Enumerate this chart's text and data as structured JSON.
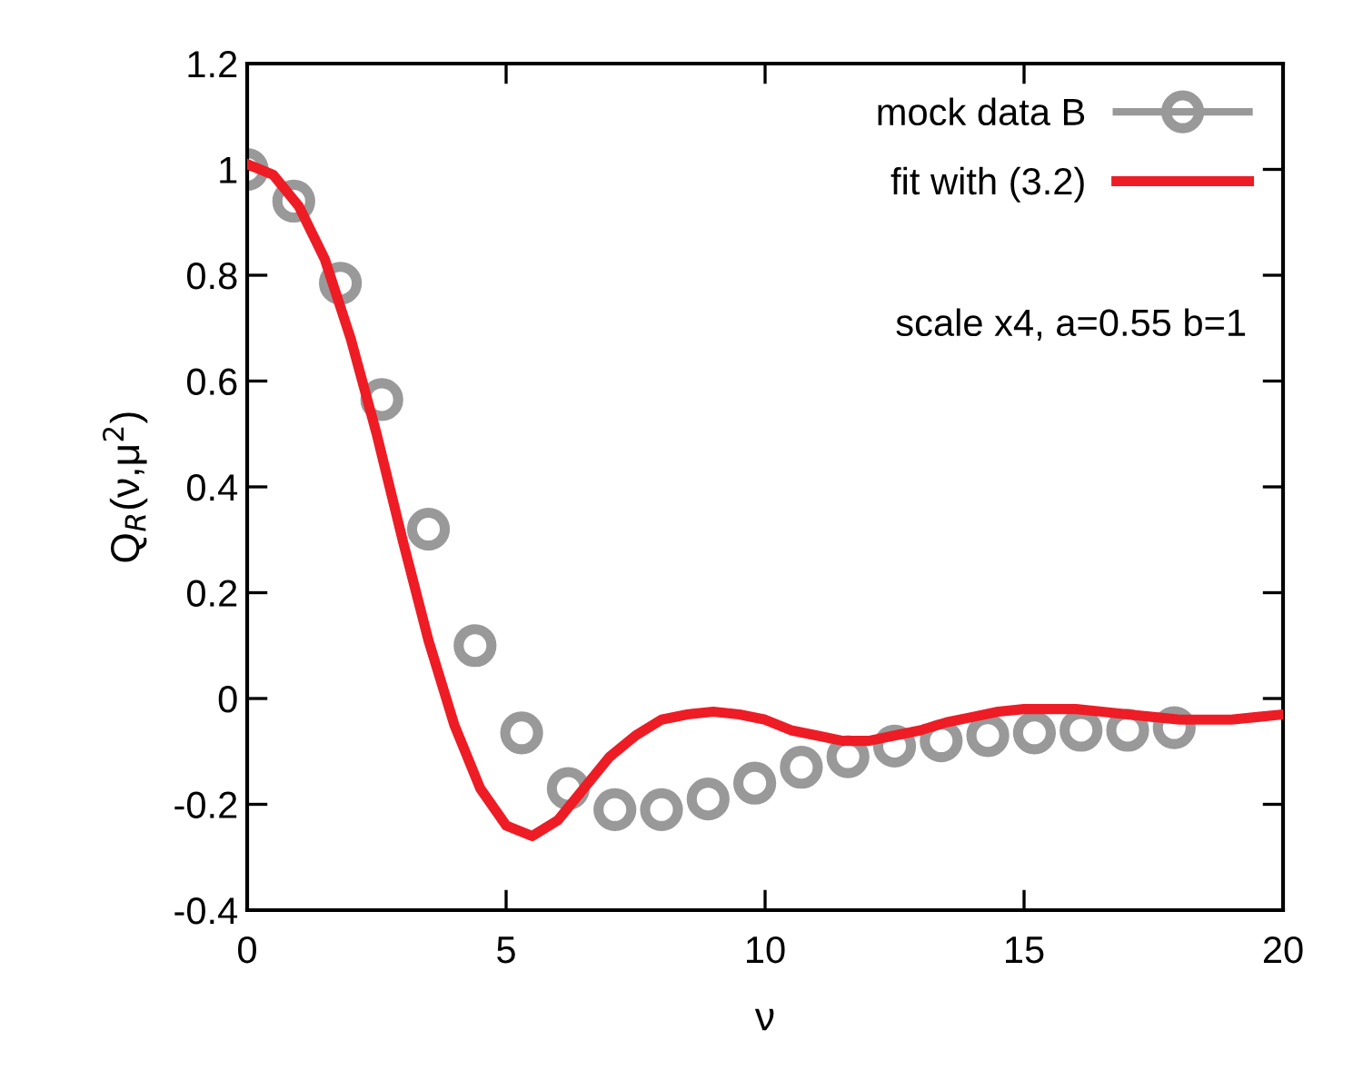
{
  "chart_data": {
    "type": "scatter",
    "xlabel": "ν",
    "ylabel": "Q$_{R}$(ν,μ$^{2}$)",
    "xlim": [
      0,
      20
    ],
    "ylim": [
      -0.4,
      1.2
    ],
    "xticks": [
      0,
      5,
      10,
      15,
      20
    ],
    "yticks": [
      -0.4,
      -0.2,
      0,
      0.2,
      0.4,
      0.6,
      0.8,
      1,
      1.2
    ],
    "grid": false,
    "legend": "top right",
    "annotations": [
      "scale x4, a=0.55 b=1"
    ],
    "series": [
      {
        "name": "mock data B",
        "marker": "circle",
        "color": "#999999",
        "x": [
          0,
          0.9,
          1.8,
          2.6,
          3.5,
          4.4,
          5.3,
          6.2,
          7.1,
          8.0,
          8.9,
          9.8,
          10.7,
          11.6,
          12.5,
          13.4,
          14.3,
          15.2,
          16.1,
          17.0,
          17.9
        ],
        "values": [
          1.0,
          0.94,
          0.785,
          0.565,
          0.32,
          0.1,
          -0.065,
          -0.17,
          -0.21,
          -0.21,
          -0.19,
          -0.16,
          -0.13,
          -0.11,
          -0.09,
          -0.08,
          -0.07,
          -0.065,
          -0.06,
          -0.06,
          -0.055
        ]
      },
      {
        "name": "fit with (3.2)",
        "type": "line",
        "marker": "none",
        "line_style": "solid",
        "color": "#ee1c25",
        "x": [
          0,
          0.5,
          1,
          1.5,
          2,
          2.5,
          3,
          3.5,
          4,
          4.5,
          5,
          5.5,
          6,
          6.5,
          7,
          7.5,
          8,
          8.5,
          9,
          9.5,
          10,
          10.5,
          11,
          11.5,
          12,
          12.5,
          13,
          13.5,
          14,
          14.5,
          15,
          15.5,
          16,
          16.5,
          17,
          17.5,
          18,
          18.5,
          19,
          19.5,
          20
        ],
        "values": [
          1.01,
          0.99,
          0.93,
          0.83,
          0.68,
          0.5,
          0.3,
          0.11,
          -0.05,
          -0.17,
          -0.24,
          -0.26,
          -0.23,
          -0.17,
          -0.11,
          -0.07,
          -0.04,
          -0.03,
          -0.025,
          -0.03,
          -0.04,
          -0.06,
          -0.07,
          -0.08,
          -0.08,
          -0.07,
          -0.06,
          -0.045,
          -0.035,
          -0.025,
          -0.02,
          -0.02,
          -0.02,
          -0.025,
          -0.03,
          -0.035,
          -0.04,
          -0.04,
          -0.04,
          -0.035,
          -0.03
        ]
      }
    ]
  }
}
